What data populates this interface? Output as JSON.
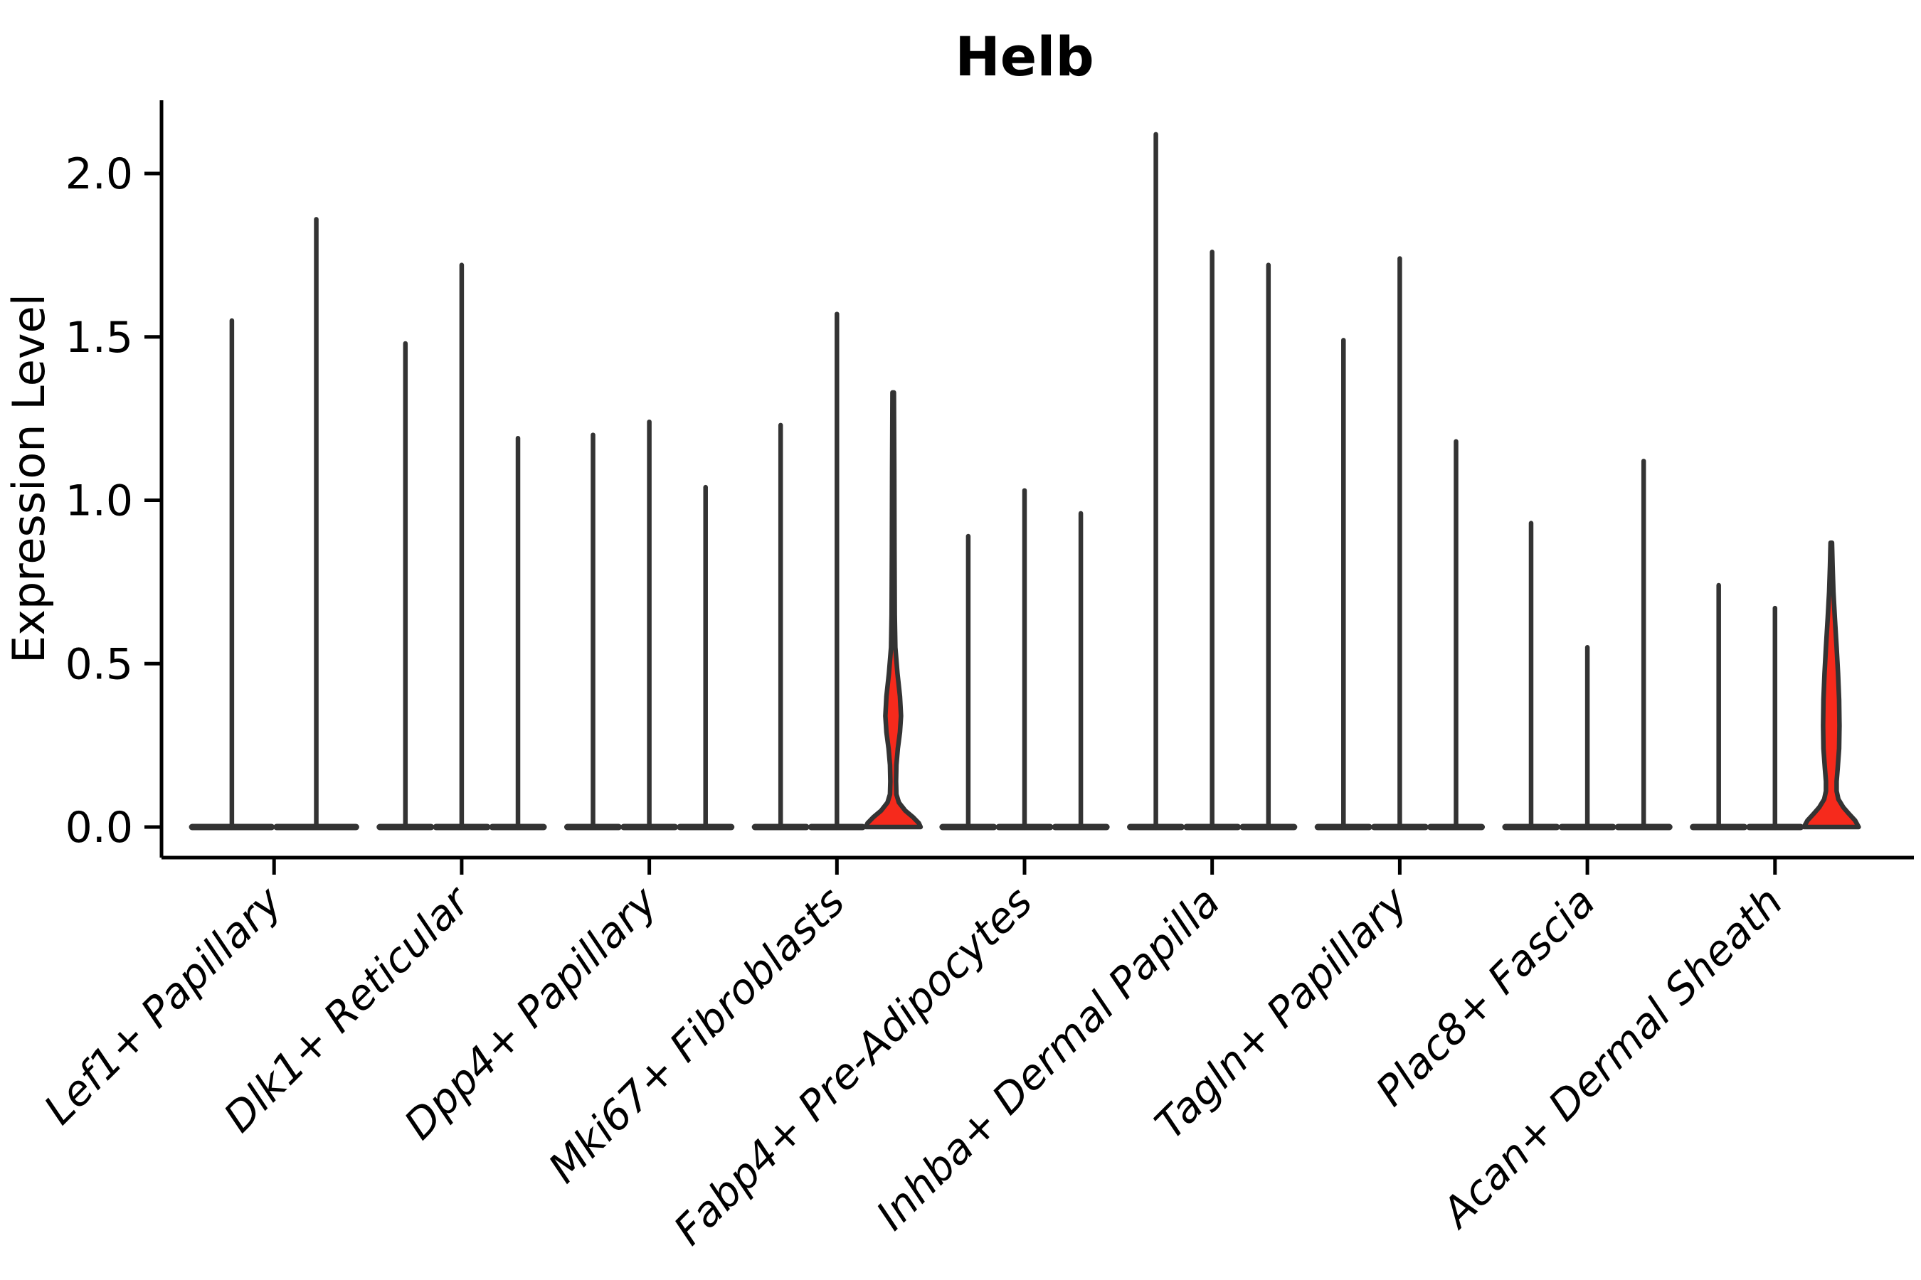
{
  "chart_data": {
    "type": "violin",
    "title": "Helb",
    "ylabel": "Expression Level",
    "xlabel": "",
    "ylim": [
      0,
      2.2
    ],
    "yticks": [
      0.0,
      0.5,
      1.0,
      1.5,
      2.0
    ],
    "ytick_labels": [
      "0.0",
      "0.5",
      "1.0",
      "1.5",
      "2.0"
    ],
    "grid": false,
    "legend_position": "none",
    "categories": [
      "Lef1+ Papillary",
      "Dlk1+ Reticular",
      "Dpp4+ Papillary",
      "Mki67+ Fibroblasts",
      "Fabp4+ Pre-Adipocytes",
      "Inhba+ Dermal Papilla",
      "Tagln+ Papillary",
      "Plac8+ Fascia",
      "Acan+ Dermal Sheath"
    ],
    "groups": [
      {
        "label": "Lef1+ Papillary",
        "violins": [
          {
            "max": 1.55,
            "filled": false
          },
          {
            "max": 1.86,
            "filled": false
          }
        ]
      },
      {
        "label": "Dlk1+ Reticular",
        "violins": [
          {
            "max": 1.48,
            "filled": false
          },
          {
            "max": 1.72,
            "filled": false
          },
          {
            "max": 1.19,
            "filled": false
          }
        ]
      },
      {
        "label": "Dpp4+ Papillary",
        "violins": [
          {
            "max": 1.2,
            "filled": false
          },
          {
            "max": 1.24,
            "filled": false
          },
          {
            "max": 1.04,
            "filled": false
          }
        ]
      },
      {
        "label": "Mki67+ Fibroblasts",
        "violins": [
          {
            "max": 1.23,
            "filled": false
          },
          {
            "max": 1.57,
            "filled": false
          },
          {
            "max": 1.33,
            "filled": true,
            "profile": [
              [
                1.33,
                1.0
              ],
              [
                1.1,
                1.5
              ],
              [
                0.85,
                1.8
              ],
              [
                0.65,
                2.2
              ],
              [
                0.55,
                3.0
              ],
              [
                0.47,
                6.0
              ],
              [
                0.4,
                9.5
              ],
              [
                0.34,
                11.0
              ],
              [
                0.29,
                9.5
              ],
              [
                0.24,
                6.5
              ],
              [
                0.19,
                4.5
              ],
              [
                0.14,
                4.0
              ],
              [
                0.1,
                4.5
              ],
              [
                0.075,
                8.0
              ],
              [
                0.05,
                17.0
              ],
              [
                0.03,
                28.0
              ],
              [
                0.012,
                36.0
              ],
              [
                0.0,
                38.5
              ]
            ]
          }
        ]
      },
      {
        "label": "Fabp4+ Pre-Adipocytes",
        "violins": [
          {
            "max": 0.89,
            "filled": false
          },
          {
            "max": 1.03,
            "filled": false
          },
          {
            "max": 0.96,
            "filled": false
          }
        ]
      },
      {
        "label": "Inhba+ Dermal Papilla",
        "violins": [
          {
            "max": 2.12,
            "filled": false
          },
          {
            "max": 1.76,
            "filled": false
          },
          {
            "max": 1.72,
            "filled": false
          }
        ]
      },
      {
        "label": "Tagln+ Papillary",
        "violins": [
          {
            "max": 1.49,
            "filled": false
          },
          {
            "max": 1.74,
            "filled": false
          },
          {
            "max": 1.18,
            "filled": false
          }
        ]
      },
      {
        "label": "Plac8+ Fascia",
        "violins": [
          {
            "max": 0.93,
            "filled": false
          },
          {
            "max": 0.55,
            "filled": false
          },
          {
            "max": 1.12,
            "filled": false
          }
        ]
      },
      {
        "label": "Acan+ Dermal Sheath",
        "violins": [
          {
            "max": 0.74,
            "filled": false
          },
          {
            "max": 0.67,
            "filled": false
          },
          {
            "max": 0.87,
            "filled": true,
            "profile": [
              [
                0.87,
                1.0
              ],
              [
                0.8,
                1.8
              ],
              [
                0.72,
                3.0
              ],
              [
                0.64,
                5.0
              ],
              [
                0.55,
                7.5
              ],
              [
                0.47,
                9.5
              ],
              [
                0.39,
                11.0
              ],
              [
                0.31,
                11.5
              ],
              [
                0.24,
                11.0
              ],
              [
                0.18,
                9.0
              ],
              [
                0.14,
                7.5
              ],
              [
                0.11,
                7.5
              ],
              [
                0.085,
                10.0
              ],
              [
                0.06,
                17.0
              ],
              [
                0.04,
                25.0
              ],
              [
                0.02,
                33.5
              ],
              [
                0.0,
                38.5
              ]
            ]
          }
        ]
      }
    ],
    "colors": {
      "highlight_fill": "#f62a1c",
      "violin_stroke": "#333333",
      "axis": "#000000",
      "background": "#ffffff"
    }
  }
}
